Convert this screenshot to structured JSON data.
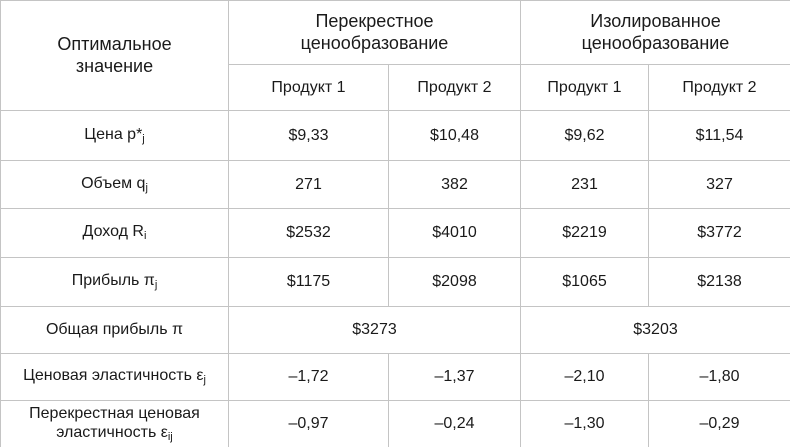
{
  "table": {
    "corner": "Оптимальное значение",
    "groups": [
      "Перекрестное ценообразование",
      "Изолированное ценообразование"
    ],
    "products": [
      "Продукт 1",
      "Продукт 2",
      "Продукт 1",
      "Продукт 2"
    ],
    "rows": [
      {
        "label": {
          "text": "Цена p*",
          "sub": "j"
        },
        "cells": [
          "$9,33",
          "$10,48",
          "$9,62",
          "$11,54"
        ]
      },
      {
        "label": {
          "text": "Объем q",
          "sub": "j"
        },
        "cells": [
          "271",
          "382",
          "231",
          "327"
        ]
      },
      {
        "label": {
          "text": "Доход R",
          "sub": "i"
        },
        "cells": [
          "$2532",
          "$4010",
          "$2219",
          "$3772"
        ]
      },
      {
        "label": {
          "text": "Прибыль π",
          "sub": "j"
        },
        "cells": [
          "$1175",
          "$2098",
          "$1065",
          "$2138"
        ]
      },
      {
        "label": {
          "text": "Общая прибыль π"
        },
        "cells": [
          "$3273",
          "$3203"
        ]
      },
      {
        "label": {
          "text": "Ценовая эластичность ε",
          "sub": "j"
        },
        "cells": [
          "–1,72",
          "–1,37",
          "–2,10",
          "–1,80"
        ]
      },
      {
        "label": {
          "text": "Перекрестная ценовая эластичность ε",
          "sub": "ij"
        },
        "cells": [
          "–0,97",
          "–0,24",
          "–1,30",
          "–0,29"
        ]
      }
    ]
  }
}
